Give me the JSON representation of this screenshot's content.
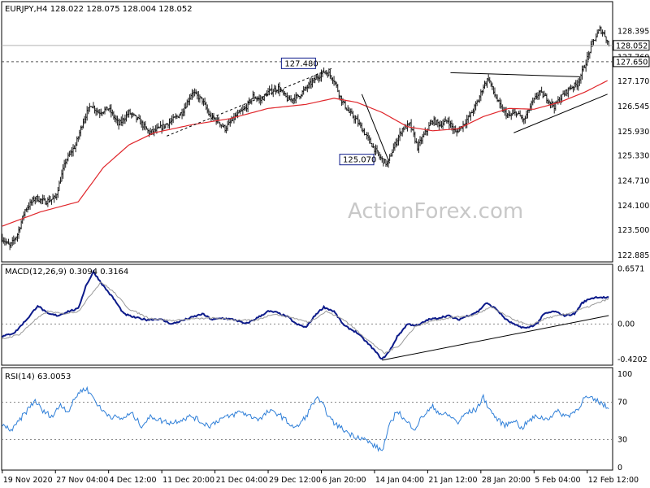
{
  "colors": {
    "frame": "#000000",
    "price_bar": "#1a1a1a",
    "ma_line": "#e0262b",
    "macd_line": "#0c1a8a",
    "macd_signal": "#9a9a9a",
    "rsi_line": "#2f7fd8",
    "dashed_level": "#555555",
    "tag_bg": "#ffffff",
    "watermark": "#c8c8c8"
  },
  "header": {
    "symbol_info": "EURJPY,H4  128.022 128.075 128.004 128.052"
  },
  "watermark": "ActionForex.com",
  "chart_data": [
    {
      "type": "line",
      "panel": "price",
      "ylim": [
        122.8,
        129.05
      ],
      "y_ticks": [
        "128.395",
        "127.760",
        "127.170",
        "126.545",
        "125.930",
        "125.330",
        "124.710",
        "124.100",
        "123.500",
        "122.885"
      ],
      "x_ticks": [
        "19 Nov 2020",
        "27 Nov 04:00",
        "4 Dec 12:00",
        "11 Dec 20:00",
        "21 Dec 04:00",
        "29 Dec 12:00",
        "6 Jan 20:00",
        "14 Jan 04:00",
        "21 Jan 12:00",
        "28 Jan 20:00",
        "5 Feb 04:00",
        "12 Feb 12:00"
      ],
      "x_tick_index": [
        0,
        42,
        84,
        126,
        168,
        210,
        252,
        294,
        336,
        378,
        420,
        462
      ],
      "n_bars": 480,
      "last_price": 128.052,
      "last_price_label": "128.052",
      "level_line": 127.65,
      "level_label": "127.650",
      "price_anchors": [
        [
          0,
          123.3
        ],
        [
          6,
          123.1
        ],
        [
          12,
          123.4
        ],
        [
          18,
          124.0
        ],
        [
          26,
          124.3
        ],
        [
          34,
          124.2
        ],
        [
          42,
          124.3
        ],
        [
          50,
          125.2
        ],
        [
          58,
          125.6
        ],
        [
          64,
          126.2
        ],
        [
          70,
          126.6
        ],
        [
          76,
          126.4
        ],
        [
          84,
          126.5
        ],
        [
          92,
          126.1
        ],
        [
          100,
          126.4
        ],
        [
          108,
          126.2
        ],
        [
          116,
          125.9
        ],
        [
          124,
          126.0
        ],
        [
          134,
          126.2
        ],
        [
          142,
          126.4
        ],
        [
          150,
          126.9
        ],
        [
          158,
          126.7
        ],
        [
          164,
          126.3
        ],
        [
          170,
          126.2
        ],
        [
          176,
          126.0
        ],
        [
          184,
          126.3
        ],
        [
          192,
          126.5
        ],
        [
          198,
          126.8
        ],
        [
          204,
          126.7
        ],
        [
          210,
          126.9
        ],
        [
          218,
          127.0
        ],
        [
          226,
          126.7
        ],
        [
          234,
          126.8
        ],
        [
          240,
          127.0
        ],
        [
          248,
          127.25
        ],
        [
          254,
          127.4
        ],
        [
          258,
          127.35
        ],
        [
          262,
          127.2
        ],
        [
          268,
          126.7
        ],
        [
          274,
          126.4
        ],
        [
          280,
          126.2
        ],
        [
          286,
          125.9
        ],
        [
          292,
          125.6
        ],
        [
          298,
          125.3
        ],
        [
          304,
          125.12
        ],
        [
          310,
          125.6
        ],
        [
          316,
          126.0
        ],
        [
          322,
          126.1
        ],
        [
          328,
          125.55
        ],
        [
          334,
          125.9
        ],
        [
          340,
          126.2
        ],
        [
          346,
          126.1
        ],
        [
          352,
          126.2
        ],
        [
          358,
          125.9
        ],
        [
          364,
          126.1
        ],
        [
          370,
          126.35
        ],
        [
          376,
          126.7
        ],
        [
          380,
          127.05
        ],
        [
          384,
          127.25
        ],
        [
          388,
          126.9
        ],
        [
          394,
          126.5
        ],
        [
          400,
          126.3
        ],
        [
          406,
          126.4
        ],
        [
          412,
          126.2
        ],
        [
          418,
          126.6
        ],
        [
          424,
          126.9
        ],
        [
          430,
          126.75
        ],
        [
          436,
          126.55
        ],
        [
          442,
          126.8
        ],
        [
          448,
          127.0
        ],
        [
          454,
          127.1
        ],
        [
          460,
          127.55
        ],
        [
          466,
          128.1
        ],
        [
          472,
          128.45
        ],
        [
          476,
          128.3
        ],
        [
          479,
          128.05
        ]
      ],
      "ma_anchors": [
        [
          0,
          123.6
        ],
        [
          30,
          123.95
        ],
        [
          60,
          124.2
        ],
        [
          80,
          125.05
        ],
        [
          100,
          125.6
        ],
        [
          120,
          125.9
        ],
        [
          150,
          126.1
        ],
        [
          180,
          126.25
        ],
        [
          210,
          126.5
        ],
        [
          240,
          126.6
        ],
        [
          262,
          126.75
        ],
        [
          280,
          126.65
        ],
        [
          300,
          126.4
        ],
        [
          320,
          126.05
        ],
        [
          340,
          125.95
        ],
        [
          360,
          126.0
        ],
        [
          380,
          126.3
        ],
        [
          400,
          126.5
        ],
        [
          420,
          126.48
        ],
        [
          440,
          126.65
        ],
        [
          460,
          126.9
        ],
        [
          479,
          127.2
        ]
      ],
      "annotations": [
        {
          "label": "127.480",
          "x_index": 250,
          "value": 127.48
        },
        {
          "label": "125.070",
          "x_index": 296,
          "value": 125.07
        }
      ],
      "trendlines": [
        {
          "style": "dashed",
          "from": [
            130,
            125.82
          ],
          "to": [
            260,
            127.48
          ]
        },
        {
          "style": "solid",
          "from": [
            284,
            126.85
          ],
          "to": [
            306,
            125.15
          ]
        },
        {
          "style": "solid",
          "from": [
            354,
            127.38
          ],
          "to": [
            456,
            127.28
          ]
        },
        {
          "style": "solid",
          "from": [
            404,
            125.9
          ],
          "to": [
            478,
            126.85
          ]
        }
      ]
    },
    {
      "type": "line",
      "panel": "macd",
      "title": "MACD(12,26,9) 0.3094 0.3164",
      "ylim": [
        -0.46,
        0.66
      ],
      "y_ticks": [
        "0.6571",
        "0.00",
        "-0.4202"
      ],
      "zero_line": 0.0,
      "series": [
        {
          "role": "macd",
          "anchors": [
            [
              0,
              -0.15
            ],
            [
              10,
              -0.1
            ],
            [
              22,
              0.1
            ],
            [
              28,
              0.22
            ],
            [
              36,
              0.12
            ],
            [
              44,
              0.1
            ],
            [
              52,
              0.15
            ],
            [
              60,
              0.18
            ],
            [
              66,
              0.45
            ],
            [
              72,
              0.62
            ],
            [
              80,
              0.45
            ],
            [
              88,
              0.3
            ],
            [
              96,
              0.12
            ],
            [
              104,
              0.08
            ],
            [
              114,
              0.05
            ],
            [
              124,
              0.06
            ],
            [
              134,
              0.0
            ],
            [
              142,
              0.04
            ],
            [
              150,
              0.08
            ],
            [
              158,
              0.12
            ],
            [
              166,
              0.05
            ],
            [
              174,
              0.07
            ],
            [
              184,
              0.05
            ],
            [
              192,
              0.0
            ],
            [
              200,
              0.06
            ],
            [
              210,
              0.15
            ],
            [
              216,
              0.14
            ],
            [
              226,
              0.08
            ],
            [
              232,
              0.0
            ],
            [
              240,
              -0.04
            ],
            [
              248,
              0.12
            ],
            [
              254,
              0.2
            ],
            [
              262,
              0.15
            ],
            [
              270,
              -0.02
            ],
            [
              280,
              -0.1
            ],
            [
              292,
              -0.28
            ],
            [
              300,
              -0.42
            ],
            [
              306,
              -0.32
            ],
            [
              312,
              -0.15
            ],
            [
              320,
              0.0
            ],
            [
              328,
              -0.02
            ],
            [
              336,
              0.05
            ],
            [
              344,
              0.07
            ],
            [
              352,
              0.1
            ],
            [
              360,
              0.05
            ],
            [
              368,
              0.1
            ],
            [
              376,
              0.15
            ],
            [
              382,
              0.25
            ],
            [
              390,
              0.18
            ],
            [
              398,
              0.05
            ],
            [
              406,
              -0.02
            ],
            [
              414,
              -0.05
            ],
            [
              422,
              0.0
            ],
            [
              428,
              0.12
            ],
            [
              436,
              0.15
            ],
            [
              444,
              0.1
            ],
            [
              452,
              0.12
            ],
            [
              458,
              0.25
            ],
            [
              464,
              0.3
            ],
            [
              470,
              0.32
            ],
            [
              479,
              0.31
            ]
          ]
        },
        {
          "role": "signal",
          "anchors": [
            [
              0,
              -0.18
            ],
            [
              14,
              -0.12
            ],
            [
              26,
              0.05
            ],
            [
              36,
              0.15
            ],
            [
              48,
              0.12
            ],
            [
              60,
              0.15
            ],
            [
              70,
              0.35
            ],
            [
              78,
              0.5
            ],
            [
              88,
              0.38
            ],
            [
              100,
              0.18
            ],
            [
              116,
              0.07
            ],
            [
              134,
              0.04
            ],
            [
              150,
              0.06
            ],
            [
              166,
              0.07
            ],
            [
              184,
              0.05
            ],
            [
              200,
              0.04
            ],
            [
              214,
              0.12
            ],
            [
              228,
              0.08
            ],
            [
              242,
              0.02
            ],
            [
              256,
              0.15
            ],
            [
              270,
              0.05
            ],
            [
              288,
              -0.18
            ],
            [
              302,
              -0.35
            ],
            [
              314,
              -0.25
            ],
            [
              326,
              -0.03
            ],
            [
              340,
              0.04
            ],
            [
              356,
              0.08
            ],
            [
              372,
              0.1
            ],
            [
              386,
              0.2
            ],
            [
              400,
              0.08
            ],
            [
              416,
              -0.02
            ],
            [
              430,
              0.07
            ],
            [
              446,
              0.12
            ],
            [
              462,
              0.2
            ],
            [
              479,
              0.3
            ]
          ]
        }
      ],
      "trendlines": [
        {
          "style": "solid",
          "from": [
            300,
            -0.43
          ],
          "to": [
            479,
            0.1
          ]
        }
      ]
    },
    {
      "type": "line",
      "panel": "rsi",
      "title": "RSI(14) 63.0053",
      "ylim": [
        0,
        100
      ],
      "y_ticks": [
        "100",
        "70",
        "30",
        "0"
      ],
      "guides": [
        70,
        30
      ],
      "series": [
        {
          "role": "rsi",
          "anchors": [
            [
              0,
              45
            ],
            [
              8,
              40
            ],
            [
              16,
              55
            ],
            [
              26,
              72
            ],
            [
              32,
              60
            ],
            [
              40,
              55
            ],
            [
              46,
              68
            ],
            [
              52,
              60
            ],
            [
              60,
              80
            ],
            [
              66,
              85
            ],
            [
              72,
              75
            ],
            [
              78,
              62
            ],
            [
              86,
              55
            ],
            [
              94,
              52
            ],
            [
              102,
              58
            ],
            [
              110,
              45
            ],
            [
              118,
              55
            ],
            [
              126,
              50
            ],
            [
              134,
              48
            ],
            [
              142,
              52
            ],
            [
              150,
              55
            ],
            [
              158,
              48
            ],
            [
              164,
              45
            ],
            [
              172,
              52
            ],
            [
              180,
              55
            ],
            [
              188,
              60
            ],
            [
              196,
              55
            ],
            [
              204,
              52
            ],
            [
              210,
              60
            ],
            [
              218,
              58
            ],
            [
              226,
              48
            ],
            [
              232,
              42
            ],
            [
              240,
              55
            ],
            [
              248,
              75
            ],
            [
              254,
              65
            ],
            [
              260,
              50
            ],
            [
              268,
              42
            ],
            [
              276,
              35
            ],
            [
              284,
              32
            ],
            [
              292,
              25
            ],
            [
              300,
              18
            ],
            [
              306,
              45
            ],
            [
              312,
              62
            ],
            [
              318,
              50
            ],
            [
              326,
              42
            ],
            [
              332,
              55
            ],
            [
              340,
              65
            ],
            [
              346,
              58
            ],
            [
              354,
              55
            ],
            [
              360,
              48
            ],
            [
              366,
              58
            ],
            [
              374,
              62
            ],
            [
              380,
              75
            ],
            [
              386,
              60
            ],
            [
              392,
              50
            ],
            [
              398,
              45
            ],
            [
              404,
              52
            ],
            [
              410,
              42
            ],
            [
              416,
              50
            ],
            [
              422,
              55
            ],
            [
              430,
              52
            ],
            [
              438,
              60
            ],
            [
              446,
              55
            ],
            [
              454,
              62
            ],
            [
              460,
              75
            ],
            [
              466,
              73
            ],
            [
              472,
              70
            ],
            [
              479,
              63
            ]
          ]
        }
      ]
    }
  ]
}
